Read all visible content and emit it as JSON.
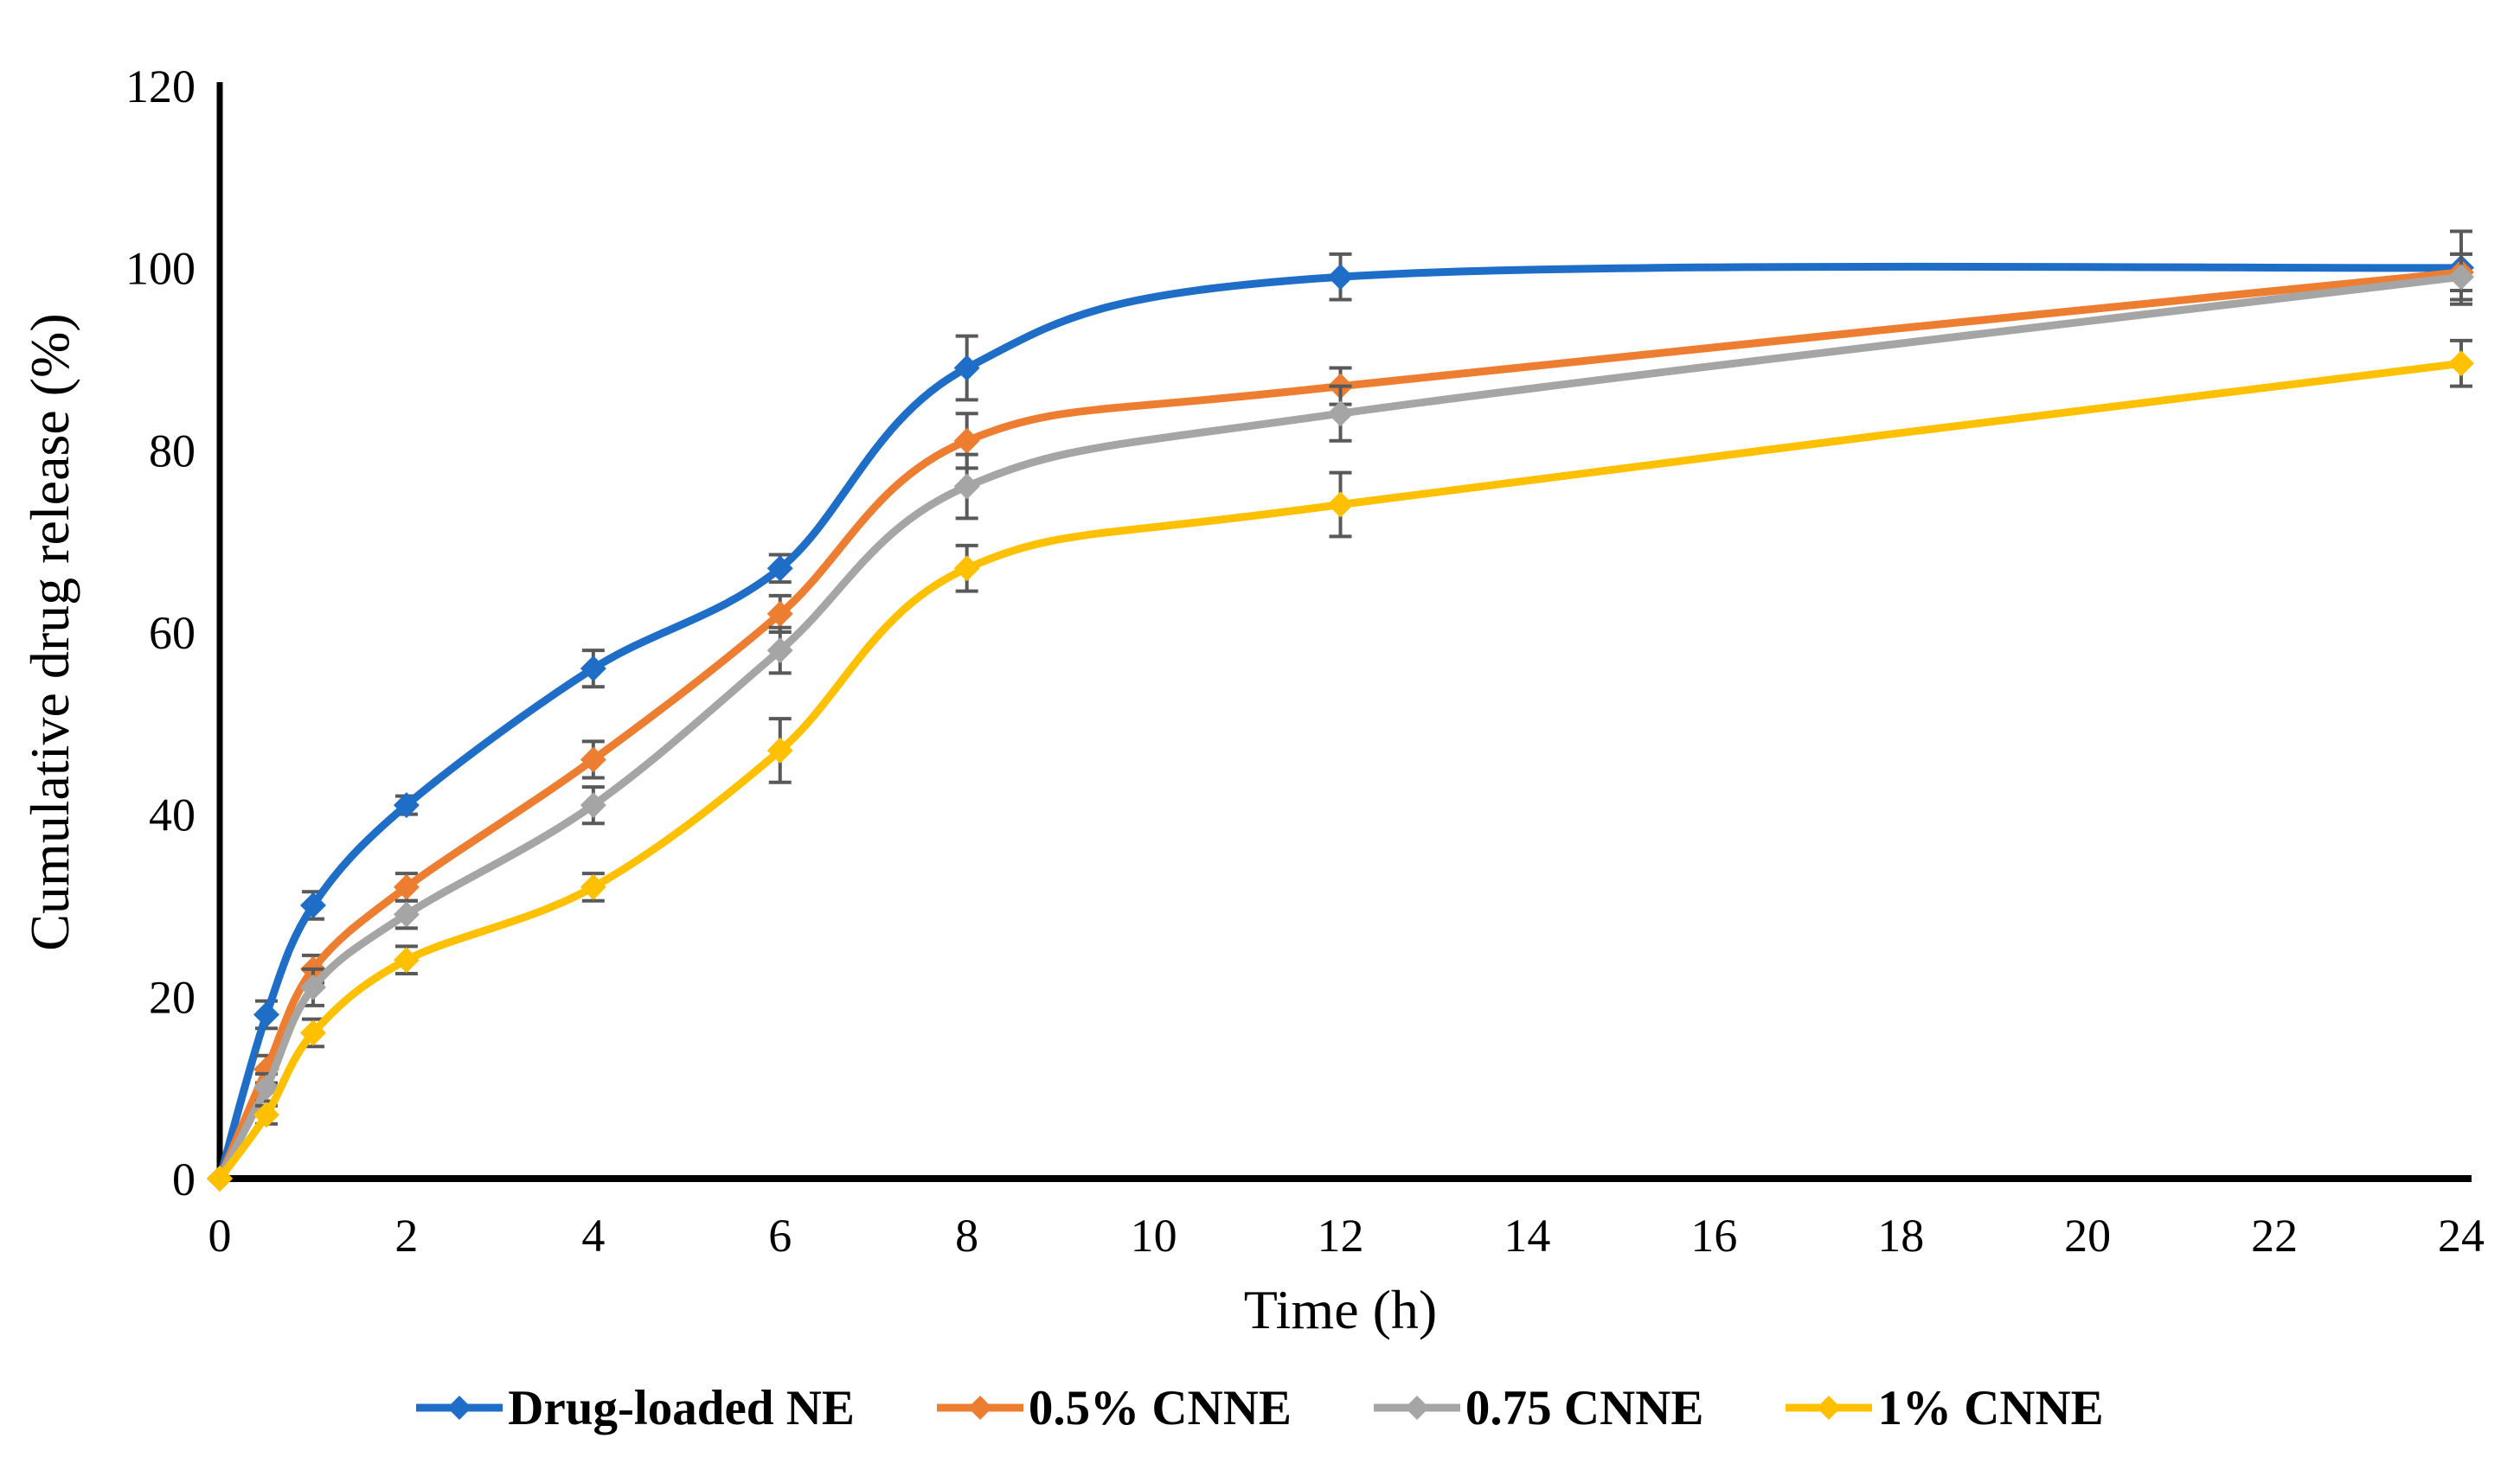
{
  "chart_data": {
    "type": "line",
    "title": "",
    "xlabel": "Time (h)",
    "ylabel": "Cumulative drug release (%)",
    "x": [
      0,
      0.5,
      1,
      2,
      4,
      6,
      8,
      12,
      24
    ],
    "xlim": [
      0,
      24
    ],
    "ylim": [
      0,
      120
    ],
    "x_ticks": [
      0,
      2,
      4,
      6,
      8,
      10,
      12,
      14,
      16,
      18,
      20,
      22,
      24
    ],
    "y_ticks": [
      0,
      20,
      40,
      60,
      80,
      100,
      120
    ],
    "grid": false,
    "line_style": "smooth",
    "marker": "diamond",
    "legend_position": "bottom",
    "axis_color": "#000000",
    "error_bar_color": "#595959",
    "series": [
      {
        "name": "Drug-loaded NE",
        "color": "#1E6EC8",
        "values": [
          0,
          18,
          30,
          41,
          56,
          67,
          89,
          99,
          100
        ],
        "errors": [
          0,
          1.5,
          1.5,
          1,
          2,
          1.5,
          3.5,
          2.5,
          4
        ]
      },
      {
        "name": "0.5% CNNE",
        "color": "#ED7D31",
        "values": [
          0,
          12,
          23,
          32,
          46,
          62,
          81,
          87,
          99.5
        ],
        "errors": [
          0,
          1.5,
          1.5,
          1.5,
          2,
          2,
          3,
          2,
          2
        ]
      },
      {
        "name": "0.75 CNNE",
        "color": "#A5A5A5",
        "values": [
          0,
          10,
          21,
          29,
          41,
          58,
          76,
          84,
          99
        ],
        "errors": [
          0,
          1.5,
          2,
          1.5,
          2,
          2.5,
          3.5,
          3,
          2.5
        ]
      },
      {
        "name": "1% CNNE",
        "color": "#FFC000",
        "values": [
          0,
          7,
          16,
          24,
          32,
          47,
          67,
          74,
          89.5
        ],
        "errors": [
          0,
          1,
          1.5,
          1.5,
          1.5,
          3.5,
          2.5,
          3.5,
          2.5
        ]
      }
    ]
  }
}
